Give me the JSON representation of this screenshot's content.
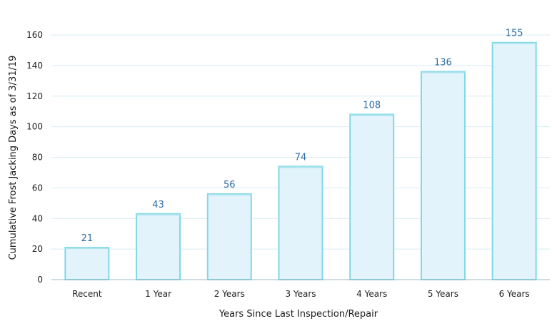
{
  "chart_data": {
    "type": "bar",
    "title": "",
    "xlabel": "Years Since Last Inspection/Repair",
    "ylabel": "Cumulative Frost Jacking Days as of 3/31/19",
    "categories": [
      "Recent",
      "1 Year",
      "2 Years",
      "3 Years",
      "4 Years",
      "5 Years",
      "6 Years"
    ],
    "values": [
      21,
      43,
      56,
      74,
      108,
      136,
      155
    ],
    "data_labels": [
      "21",
      "43",
      "56",
      "74",
      "108",
      "136",
      "155"
    ],
    "ylim": [
      0,
      160
    ],
    "yticks": [
      0,
      20,
      40,
      60,
      80,
      100,
      120,
      140,
      160
    ],
    "ytick_labels": [
      "0",
      "20",
      "40",
      "60",
      "80",
      "100",
      "120",
      "140",
      "160"
    ],
    "grid": true,
    "legend": "none",
    "colors": {
      "bar_fill": "#e3f3fc",
      "bar_stroke": "#7fd8e6",
      "data_label": "#2e6da4",
      "gridline": "#d6ecf3",
      "axis": "#9fb8c4"
    }
  }
}
